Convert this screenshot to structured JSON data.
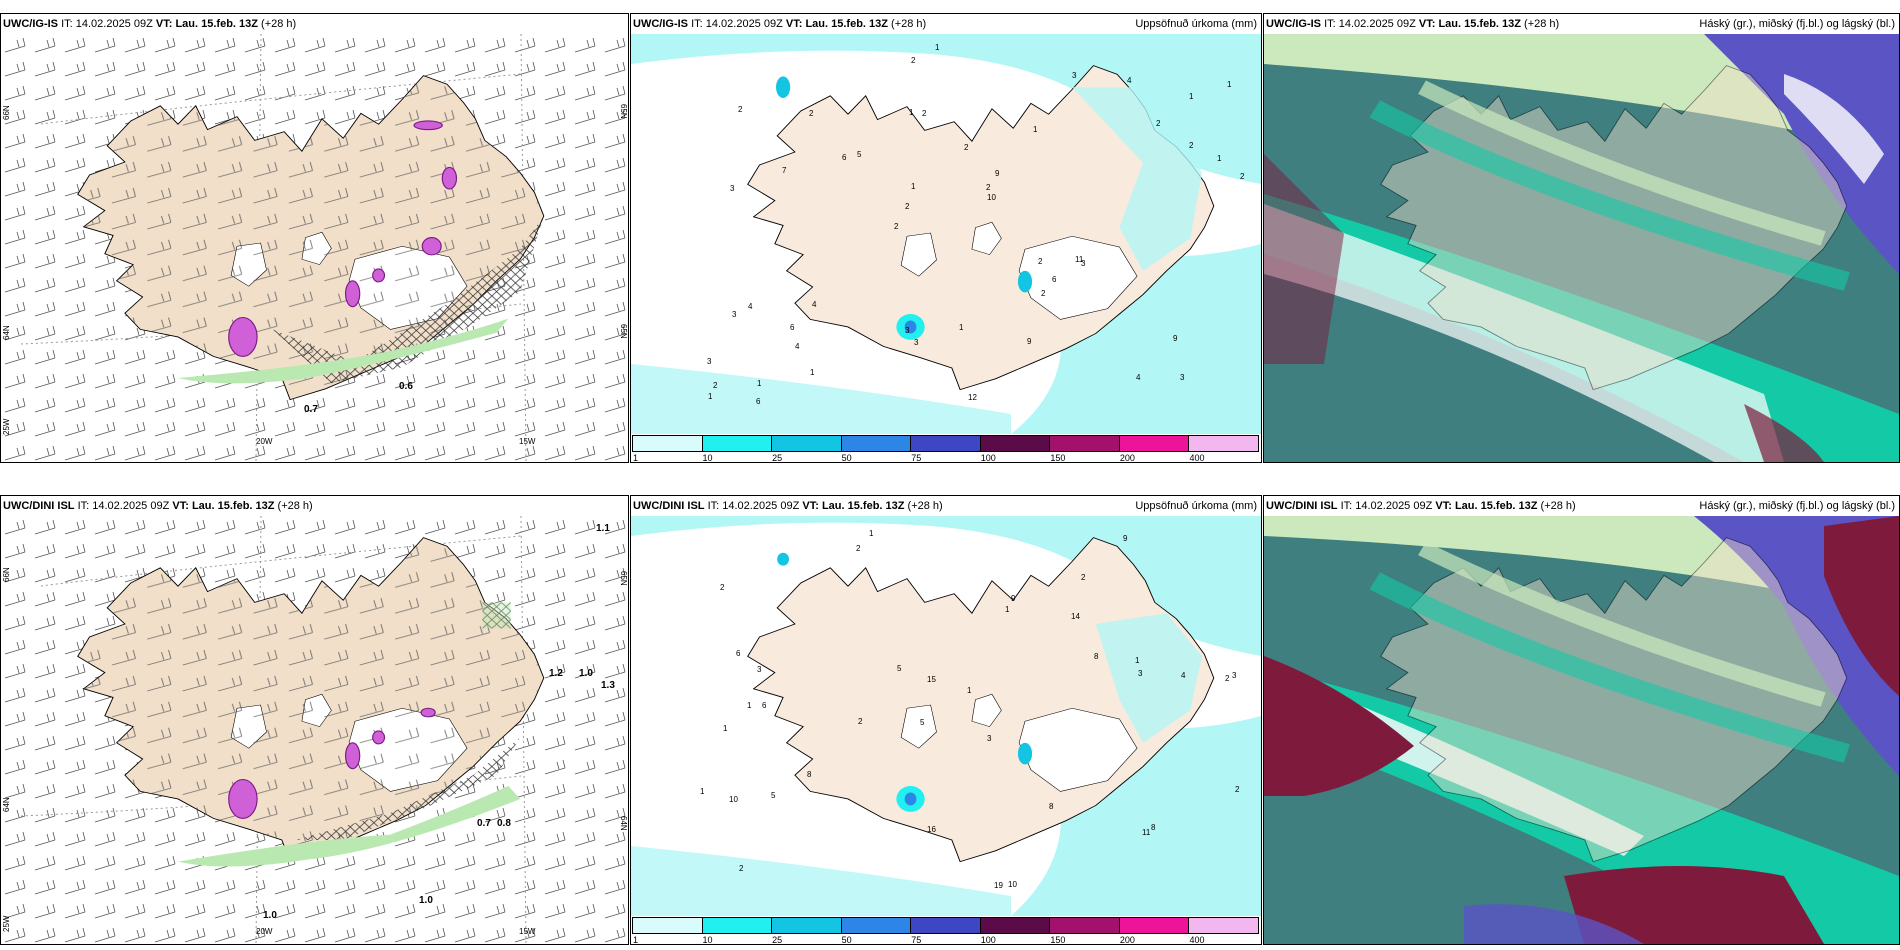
{
  "colors": {
    "land": "#f1dfca",
    "sea": "#ffffff",
    "precip_light": "#b3f6f6",
    "cloud_low": "#3f7f80",
    "cloud_mid": "#14c9a6",
    "cloud_high": "#5b54c4",
    "cloud_pale": "#cce9bd",
    "cloud_maroon": "#7e1a3c",
    "magenta": "#d060d8",
    "green": "#b9e8b1"
  },
  "rows": [
    {
      "model": "UWC/IG-IS",
      "it_label": "IT:",
      "it_value": "14.02.2025 09Z",
      "vt_label": "VT:",
      "vt_value": "Lau. 15.feb. 13Z",
      "lead": "(+28 h)",
      "wind_labels": [
        "0.7",
        "0.6"
      ],
      "precip_numbers": [
        "3",
        "3",
        "1",
        "2",
        "1",
        "1",
        "1",
        "2",
        "4",
        "5",
        "3",
        "4",
        "2",
        "9",
        "3",
        "2",
        "2",
        "2",
        "2",
        "2",
        "2",
        "3",
        "1",
        "2",
        "3",
        "4",
        "4",
        "9",
        "11",
        "12",
        "6",
        "7",
        "2",
        "1",
        "1",
        "2",
        "2",
        "3",
        "10",
        "3",
        "2",
        "1",
        "6",
        "9",
        "6",
        "6",
        "1",
        "1",
        "4",
        "1"
      ],
      "lat_labels": [
        "66N",
        "64N",
        "25W"
      ],
      "lon_labels": [
        "20W",
        "15W"
      ],
      "edge_labels": [
        "65N",
        "65N"
      ]
    },
    {
      "model": "UWC/DINI ISL",
      "it_label": "IT:",
      "it_value": "14.02.2025 09Z",
      "vt_label": "VT:",
      "vt_value": "Lau. 15.feb. 13Z",
      "lead": "(+28 h)",
      "wind_labels": [
        "1.1",
        "1.2",
        "1.0",
        "1.3",
        "0.7",
        "0.8",
        "1.0",
        "1.0"
      ],
      "precip_numbers": [
        "1",
        "2",
        "2",
        "5",
        "3",
        "6",
        "2",
        "14",
        "1",
        "1",
        "1",
        "2",
        "2",
        "2",
        "19",
        "10",
        "16",
        "9",
        "8",
        "8",
        "3",
        "1",
        "3",
        "4",
        "1",
        "6",
        "15",
        "3",
        "8",
        "10",
        "11",
        "9",
        "5",
        "5",
        "8",
        "2",
        "1"
      ],
      "lat_labels": [
        "66N",
        "64N",
        "25W"
      ],
      "lon_labels": [
        "20W",
        "15W"
      ],
      "edge_labels": [
        "64N",
        "65N"
      ]
    }
  ],
  "precip_title": "Uppsöfnuð úrkoma (mm)",
  "cloud_title": "Háský (gr.), miðský (fj.bl.) og lágský (bl.)",
  "colorbar": {
    "ticks": [
      "1",
      "10",
      "25",
      "50",
      "75",
      "100",
      "150",
      "200",
      "400"
    ],
    "colors": [
      "#d9fbfb",
      "#22f0f0",
      "#13c4e3",
      "#2d85e6",
      "#3e46c4",
      "#5b0b48",
      "#a2126c",
      "#ee149a",
      "#f2b7ef"
    ]
  }
}
